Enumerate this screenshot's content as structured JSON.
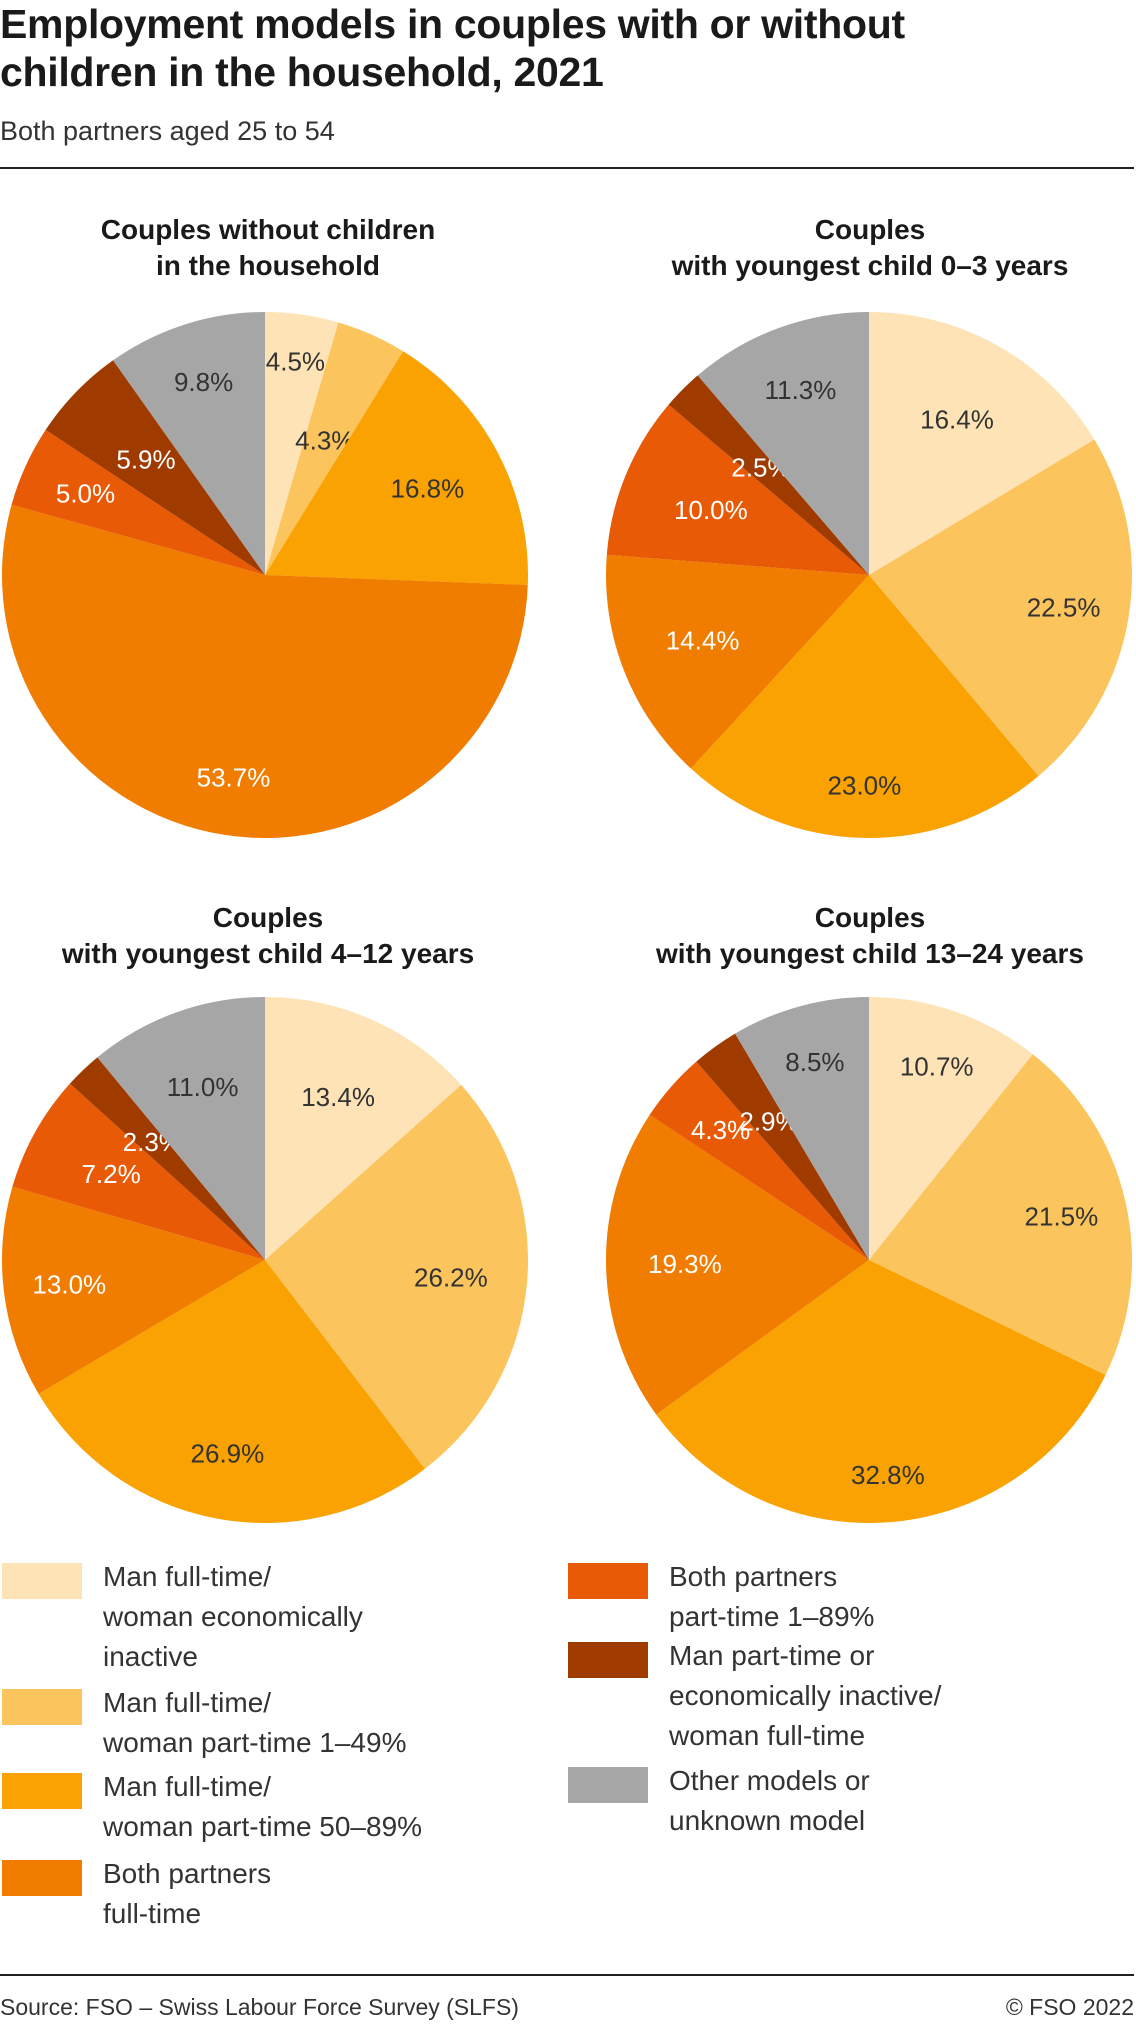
{
  "header": {
    "title": "Employment models in couples with or without\nchildren in the household, 2021",
    "subtitle": "Both partners aged 25 to 54"
  },
  "colors": {
    "Man full-time/ woman economically inactive": "#fde3b6",
    "Man full-time/ woman part-time 1–49%": "#fcc45c",
    "Man full-time/ woman part-time 50–89%": "#f9a201",
    "Both partners full-time": "#f07c00",
    "Both partners part-time 1–89%": "#e85a05",
    "Man part-time or economically inactive/ woman full-time": "#a03b00",
    "Other models or unknown model": "#a6a6a6"
  },
  "chart_data": [
    {
      "type": "pie",
      "title": "Couples without children\nin the household",
      "categories": [
        "Man full-time/ woman economically inactive",
        "Man full-time/ woman part-time 1–49%",
        "Man full-time/ woman part-time 50–89%",
        "Both partners full-time",
        "Both partners part-time 1–89%",
        "Man part-time or economically inactive/ woman full-time",
        "Other models or unknown model"
      ],
      "values": [
        4.5,
        4.3,
        16.8,
        53.7,
        5.0,
        5.9,
        9.8
      ],
      "labels": [
        "4.5%",
        "4.3%",
        "16.8%",
        "53.7%",
        "5.0%",
        "5.9%",
        "9.8%"
      ]
    },
    {
      "type": "pie",
      "title": "Couples\nwith youngest child 0–3 years",
      "categories": [
        "Man full-time/ woman economically inactive",
        "Man full-time/ woman part-time 1–49%",
        "Man full-time/ woman part-time 50–89%",
        "Both partners full-time",
        "Both partners part-time 1–89%",
        "Man part-time or economically inactive/ woman full-time",
        "Other models or unknown model"
      ],
      "values": [
        16.4,
        22.5,
        23.0,
        14.4,
        10.0,
        2.5,
        11.3
      ],
      "labels": [
        "16.4%",
        "22.5%",
        "23.0%",
        "14.4%",
        "10.0%",
        "2.5%",
        "11.3%"
      ]
    },
    {
      "type": "pie",
      "title": "Couples\nwith youngest child 4–12 years",
      "categories": [
        "Man full-time/ woman economically inactive",
        "Man full-time/ woman part-time 1–49%",
        "Man full-time/ woman part-time 50–89%",
        "Both partners full-time",
        "Both partners part-time 1–89%",
        "Man part-time or economically inactive/ woman full-time",
        "Other models or unknown model"
      ],
      "values": [
        13.4,
        26.2,
        26.9,
        13.0,
        7.2,
        2.3,
        11.0
      ],
      "labels": [
        "13.4%",
        "26.2%",
        "26.9%",
        "13.0%",
        "7.2%",
        "2.3%",
        "11.0%"
      ]
    },
    {
      "type": "pie",
      "title": "Couples\nwith youngest child 13–24 years",
      "categories": [
        "Man full-time/ woman economically inactive",
        "Man full-time/ woman part-time 1–49%",
        "Man full-time/ woman part-time 50–89%",
        "Both partners full-time",
        "Both partners part-time 1–89%",
        "Man part-time or economically inactive/ woman full-time",
        "Other models or unknown model"
      ],
      "values": [
        10.7,
        21.5,
        32.8,
        19.3,
        4.3,
        2.9,
        8.5
      ],
      "labels": [
        "10.7%",
        "21.5%",
        "32.8%",
        "19.3%",
        "4.3%",
        "2.9%",
        "8.5%"
      ]
    }
  ],
  "legend": [
    {
      "label": "Man full-time/\nwoman economically\ninactive",
      "color": "#fde3b6"
    },
    {
      "label": "Man full-time/\nwoman part-time 1–49%",
      "color": "#fcc45c"
    },
    {
      "label": "Man full-time/\nwoman part-time 50–89%",
      "color": "#f9a201"
    },
    {
      "label": "Both partners\nfull-time",
      "color": "#f07c00"
    },
    {
      "label": "Both partners\npart-time 1–89%",
      "color": "#e85a05"
    },
    {
      "label": "Man part-time or\neconomically inactive/\nwoman full-time",
      "color": "#a03b00"
    },
    {
      "label": "Other models or\nunknown model",
      "color": "#a6a6a6"
    }
  ],
  "footer": {
    "source": "Source: FSO – Swiss Labour Force Survey (SLFS)",
    "copyright": "© FSO 2022"
  }
}
